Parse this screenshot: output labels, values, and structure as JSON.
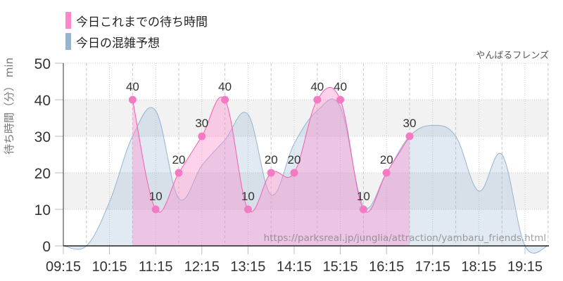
{
  "chart_data": {
    "type": "area",
    "title": "やんばるフレンズ",
    "xlabel": "",
    "ylabel": "待ち時間（分） min",
    "ylim": [
      0,
      50
    ],
    "yticks": [
      0,
      10,
      20,
      30,
      40,
      50
    ],
    "xticks": [
      "09:15",
      "10:15",
      "11:15",
      "12:15",
      "13:15",
      "14:15",
      "15:15",
      "16:15",
      "17:15",
      "18:15",
      "19:15"
    ],
    "grid": true,
    "legend_position": "top-left",
    "series": [
      {
        "name": "今日これまでの待ち時間",
        "color": "#ff88cc",
        "x": [
          "10:45",
          "11:15",
          "11:45",
          "12:15",
          "12:45",
          "13:15",
          "13:45",
          "14:15",
          "14:45",
          "15:15",
          "15:45",
          "16:15",
          "16:45"
        ],
        "values": [
          40,
          10,
          20,
          30,
          40,
          10,
          20,
          20,
          40,
          40,
          10,
          20,
          30
        ]
      },
      {
        "name": "今日の混雑予想",
        "color": "#94b4d1",
        "x": [
          "09:15",
          "09:45",
          "10:15",
          "10:45",
          "11:15",
          "11:45",
          "12:15",
          "12:45",
          "13:15",
          "13:45",
          "14:15",
          "14:45",
          "15:15",
          "15:45",
          "16:15",
          "16:45",
          "17:15",
          "17:45",
          "18:15",
          "18:45",
          "19:15",
          "19:45"
        ],
        "values": [
          0,
          0,
          12,
          30,
          37,
          13,
          22,
          29,
          36,
          14,
          28,
          37,
          38,
          11,
          20,
          30,
          33,
          30,
          15,
          25,
          0,
          0
        ]
      }
    ],
    "annotation": "https://parksreal.jp/junglia/attraction/yambaru_friends.html"
  },
  "legend": {
    "items": [
      {
        "label": "今日これまでの待ち時間",
        "color": "#ff88cc"
      },
      {
        "label": "今日の混雑予想",
        "color": "#94b4d1"
      }
    ]
  },
  "header": {
    "attraction_name": "やんばるフレンズ"
  },
  "axis": {
    "y_title": "待ち時間（分） min"
  },
  "watermark": "https://parksreal.jp/junglia/attraction/yambaru_friends.html"
}
